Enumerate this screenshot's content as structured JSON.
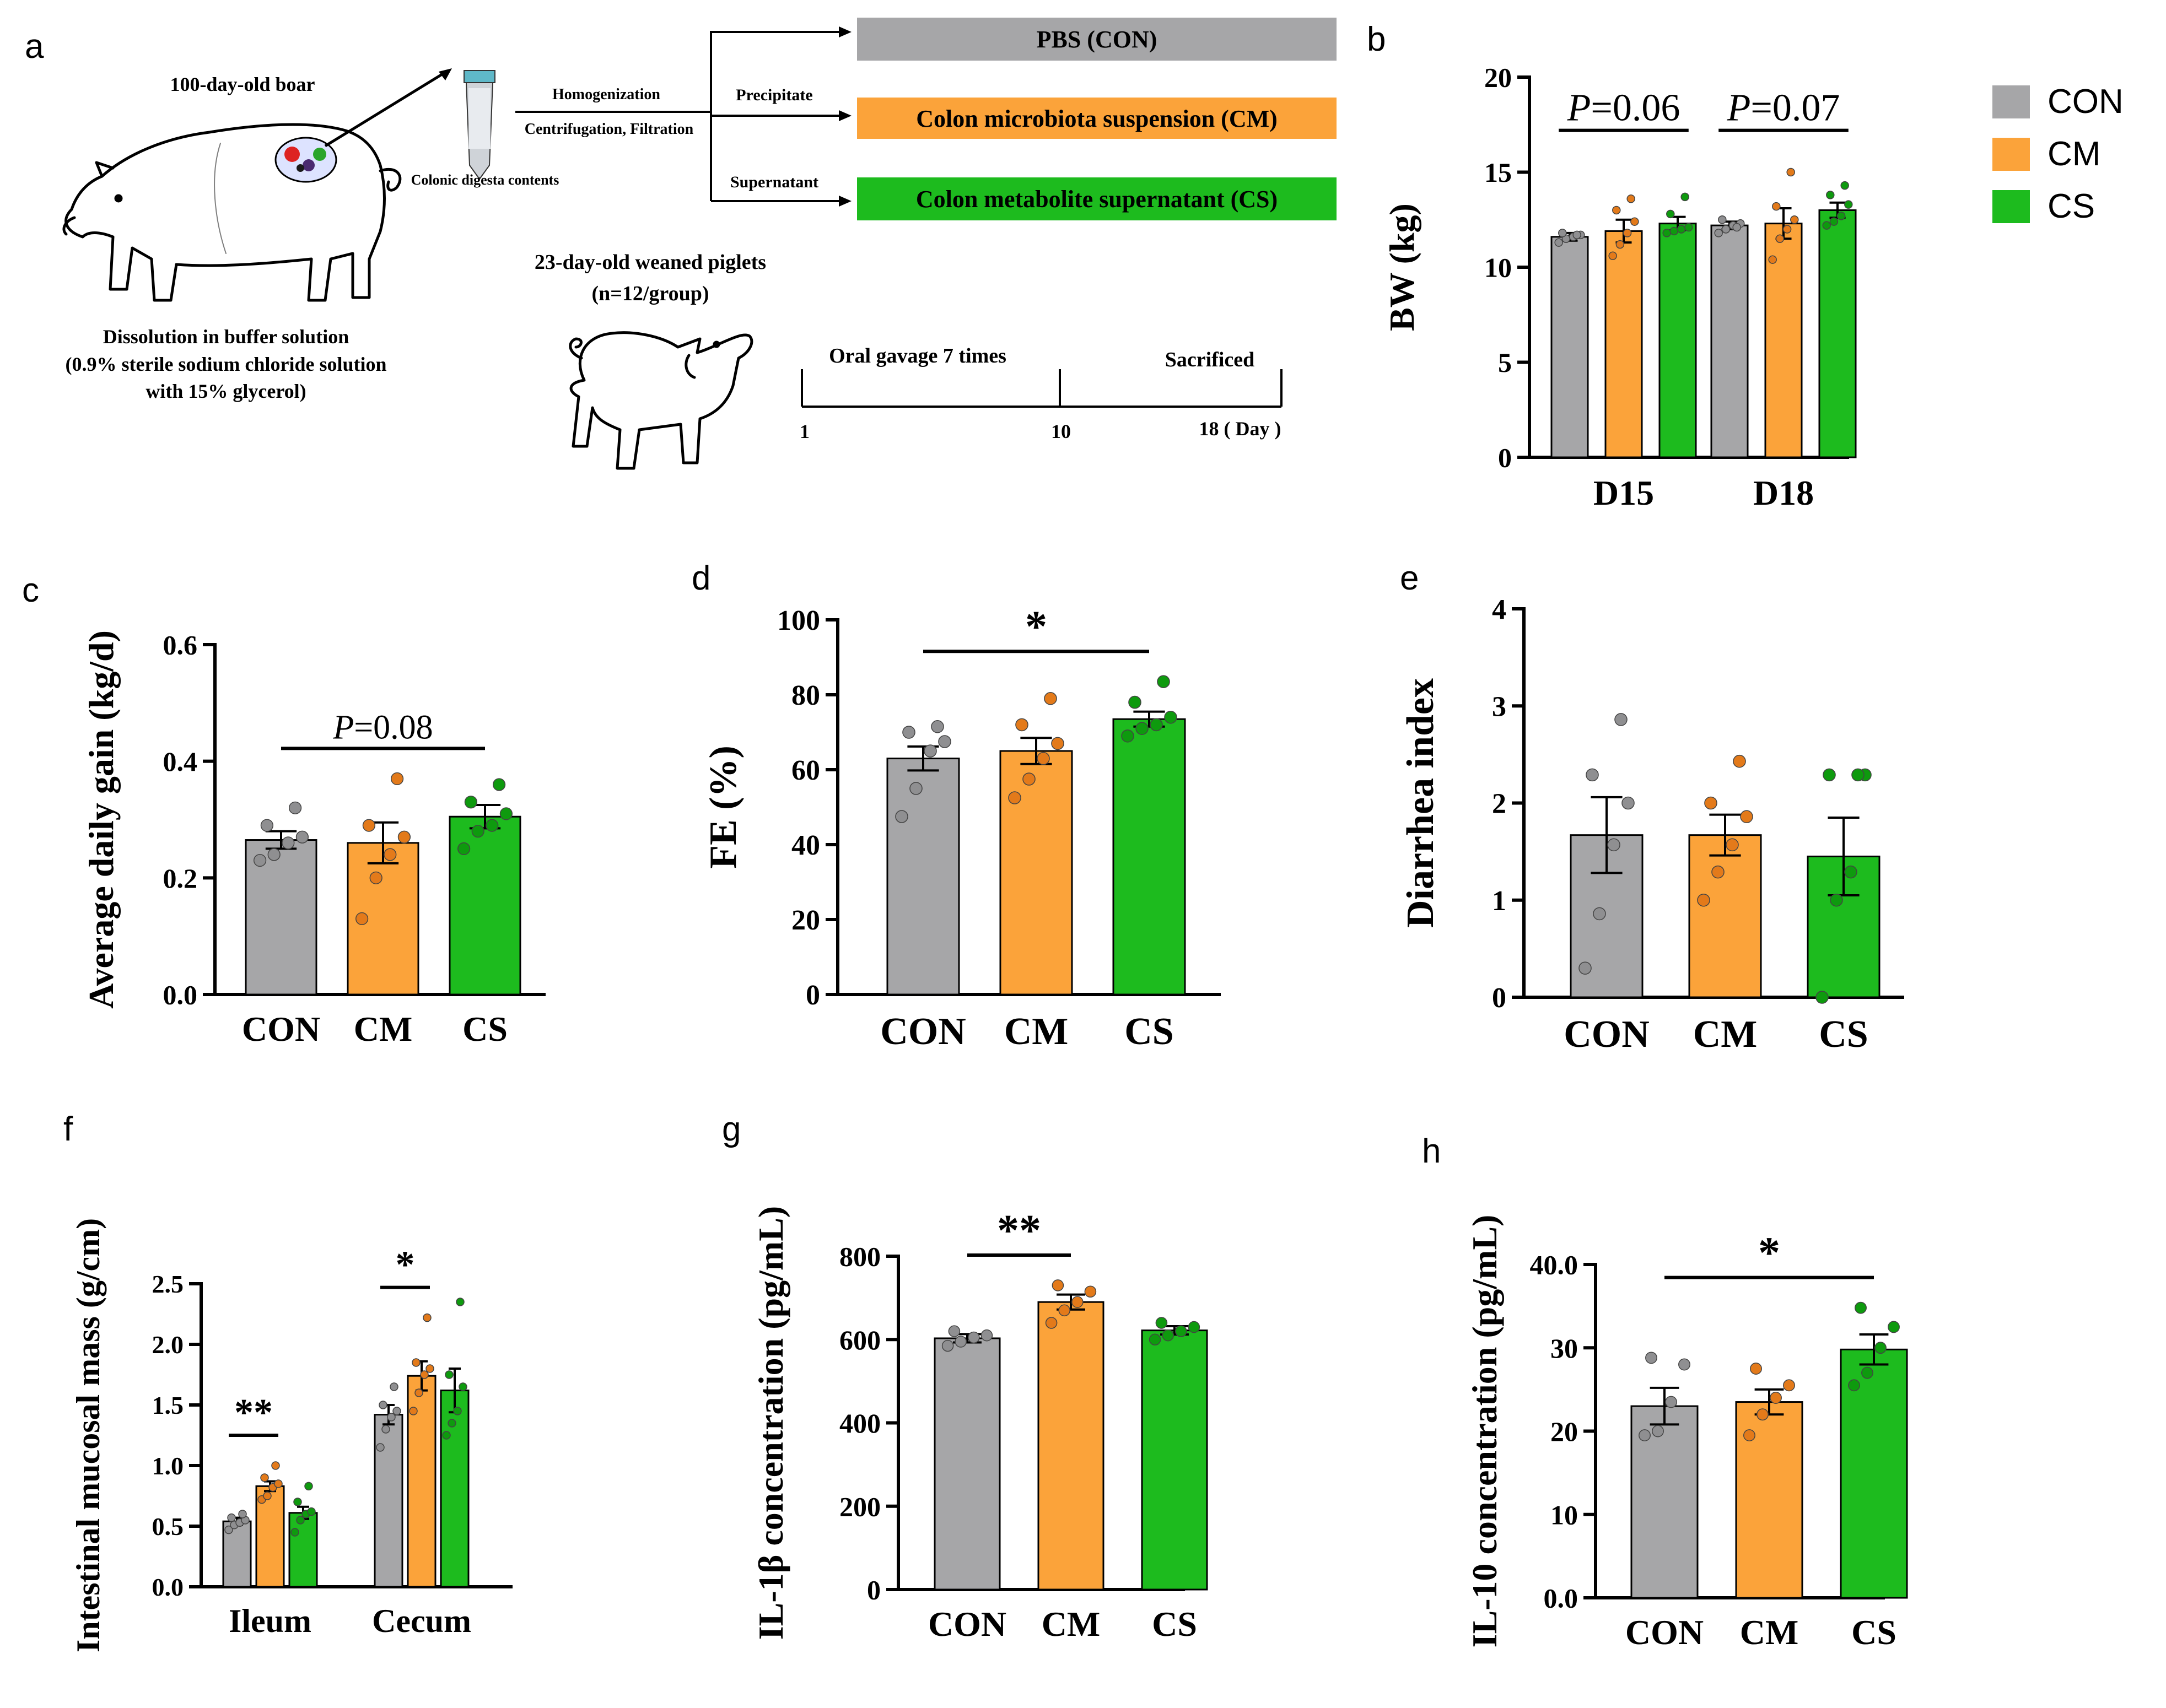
{
  "colors": {
    "CON": "#a6a6a8",
    "CM": "#fba33a",
    "CS": "#1dbb1e",
    "CON_dot": "#8f8f91",
    "CM_dot": "#e37a1a",
    "CS_dot": "#0e9a0e",
    "axis": "#000000"
  },
  "panel_letters": {
    "a": "a",
    "b": "b",
    "c": "c",
    "d": "d",
    "e": "e",
    "f": "f",
    "g": "g",
    "h": "h"
  },
  "schematic": {
    "boar_title": "100-day-old boar",
    "digesta_label": "Colonic digesta contents",
    "step1": "Homogenization",
    "step2": "Centrifugation, Filtration",
    "precipitate": "Precipitate",
    "supernatant": "Supernatant",
    "box_con": "PBS (CON)",
    "box_cm": "Colon microbiota suspension (CM)",
    "box_cs": "Colon metabolite supernatant (CS)",
    "buffer_line1": "Dissolution in buffer solution",
    "buffer_line2": "(0.9% sterile sodium chloride solution",
    "buffer_line3": "with 15% glycerol)",
    "piglet_line1": "23-day-old weaned piglets",
    "piglet_line2": "(n=12/group)",
    "timeline_gavage": "Oral gavage 7 times",
    "timeline_sacrificed": "Sacrificed",
    "tick_1": "1",
    "tick_10": "10",
    "tick_18": "18 ( Day )",
    "box_colors": {
      "con": "#a6a6a8",
      "cm": "#fba33a",
      "cs": "#1dbb1e"
    }
  },
  "chart_data": [
    {
      "panel": "b",
      "type": "bar",
      "ylabel": "BW (kg)",
      "ylim": [
        0,
        20
      ],
      "yticks": [
        0,
        5,
        10,
        15,
        20
      ],
      "categories": [
        "D15",
        "D18"
      ],
      "legend": [
        "CON",
        "CM",
        "CS"
      ],
      "legend_position": "right",
      "series": [
        {
          "name": "CON",
          "values": [
            11.6,
            12.2
          ],
          "sem": [
            0.2,
            0.2
          ],
          "points": [
            [
              11.3,
              11.5,
              11.6,
              11.7,
              11.8,
              11.7
            ],
            [
              11.8,
              12.0,
              12.2,
              12.3,
              12.5,
              12.1
            ]
          ]
        },
        {
          "name": "CM",
          "values": [
            11.9,
            12.3
          ],
          "sem": [
            0.6,
            0.8
          ],
          "points": [
            [
              10.6,
              11.2,
              11.8,
              12.4,
              13.0,
              13.6
            ],
            [
              10.4,
              11.5,
              12.0,
              12.5,
              13.2,
              15.0
            ]
          ]
        },
        {
          "name": "CS",
          "values": [
            12.3,
            13.0
          ],
          "sem": [
            0.35,
            0.4
          ],
          "points": [
            [
              11.8,
              11.9,
              12.0,
              12.1,
              12.8,
              13.7
            ],
            [
              12.2,
              12.4,
              12.7,
              13.3,
              13.8,
              14.3
            ]
          ]
        }
      ],
      "annotations": [
        {
          "text_i": "P",
          "text": "=0.06",
          "group": 0
        },
        {
          "text_i": "P",
          "text": "=0.07",
          "group": 1
        }
      ]
    },
    {
      "panel": "c",
      "type": "bar",
      "ylabel": "Average daily gain (kg/d)",
      "ylim": [
        0,
        0.6
      ],
      "yticks": [
        "0.0",
        "0.2",
        "0.4",
        "0.6"
      ],
      "categories": [
        "CON",
        "CM",
        "CS"
      ],
      "values": [
        0.265,
        0.26,
        0.305
      ],
      "sem": [
        0.015,
        0.035,
        0.02
      ],
      "points": [
        [
          0.23,
          0.24,
          0.26,
          0.27,
          0.29,
          0.32
        ],
        [
          0.13,
          0.2,
          0.24,
          0.27,
          0.29,
          0.37
        ],
        [
          0.25,
          0.28,
          0.29,
          0.31,
          0.33,
          0.36
        ]
      ],
      "annotation": {
        "text_i": "P",
        "text": "=0.08",
        "from": 0,
        "to": 2
      }
    },
    {
      "panel": "d",
      "type": "bar",
      "ylabel": "FE (%)",
      "ylim": [
        0,
        100
      ],
      "yticks": [
        0,
        20,
        40,
        60,
        80,
        100
      ],
      "categories": [
        "CON",
        "CM",
        "CS"
      ],
      "values": [
        63,
        65,
        73.5
      ],
      "sem": [
        3.2,
        3.5,
        2.0
      ],
      "points": [
        [
          47.5,
          55.0,
          65.0,
          67.5,
          70.0,
          71.5
        ],
        [
          52.5,
          57.5,
          63.0,
          67.0,
          72.0,
          79.0
        ],
        [
          69.0,
          71.0,
          72.0,
          74.0,
          78.0,
          83.5
        ]
      ],
      "annotation": {
        "text": "*",
        "from": 0,
        "to": 2
      }
    },
    {
      "panel": "e",
      "type": "bar",
      "ylabel": "Diarrhea index",
      "ylim": [
        0,
        4
      ],
      "yticks": [
        0,
        1,
        2,
        3,
        4
      ],
      "categories": [
        "CON",
        "CM",
        "CS"
      ],
      "values": [
        1.67,
        1.67,
        1.45
      ],
      "sem": [
        0.39,
        0.21,
        0.4
      ],
      "points": [
        [
          0.3,
          0.86,
          1.57,
          2.0,
          2.29,
          2.86
        ],
        [
          1.0,
          1.29,
          1.57,
          1.86,
          2.0,
          2.43
        ],
        [
          0.0,
          1.0,
          1.29,
          2.29,
          2.29,
          2.29
        ]
      ]
    },
    {
      "panel": "f",
      "type": "bar",
      "ylabel": "Intestinal mucosal mass (g/cm)",
      "ylim": [
        0,
        2.5
      ],
      "yticks": [
        "0.0",
        "0.5",
        "1.0",
        "1.5",
        "2.0",
        "2.5"
      ],
      "categories": [
        "Ileum",
        "Cecum"
      ],
      "series": [
        {
          "name": "CON",
          "values": [
            0.54,
            1.42
          ],
          "sem": [
            0.03,
            0.08
          ],
          "points": [
            [
              0.47,
              0.51,
              0.53,
              0.55,
              0.57,
              0.6
            ],
            [
              1.15,
              1.3,
              1.4,
              1.45,
              1.5,
              1.65
            ]
          ]
        },
        {
          "name": "CM",
          "values": [
            0.83,
            1.74
          ],
          "sem": [
            0.04,
            0.12
          ],
          "points": [
            [
              0.72,
              0.75,
              0.82,
              0.85,
              0.9,
              1.0
            ],
            [
              1.45,
              1.6,
              1.75,
              1.8,
              1.85,
              2.22
            ]
          ]
        },
        {
          "name": "CS",
          "values": [
            0.61,
            1.62
          ],
          "sem": [
            0.05,
            0.18
          ],
          "points": [
            [
              0.45,
              0.55,
              0.6,
              0.62,
              0.7,
              0.83
            ],
            [
              1.25,
              1.35,
              1.45,
              1.65,
              1.75,
              2.35
            ]
          ]
        }
      ],
      "annotations": [
        {
          "text": "**",
          "group": 0,
          "from": 0,
          "to": 1
        },
        {
          "text": "*",
          "group": 1,
          "from": 0,
          "to": 1
        }
      ]
    },
    {
      "panel": "g",
      "type": "bar",
      "ylabel": "IL-1β concentration (pg/mL)",
      "ylim": [
        0,
        800
      ],
      "yticks": [
        0,
        200,
        400,
        600,
        800
      ],
      "categories": [
        "CON",
        "CM",
        "CS"
      ],
      "values": [
        603,
        690,
        622
      ],
      "sem": [
        10,
        18,
        10
      ],
      "points": [
        [
          585,
          595,
          605,
          610,
          620
        ],
        [
          640,
          670,
          690,
          715,
          730
        ],
        [
          600,
          610,
          620,
          630,
          640
        ]
      ],
      "annotation": {
        "text": "**",
        "from": 0,
        "to": 1
      }
    },
    {
      "panel": "h",
      "type": "bar",
      "ylabel": "IL-10 concentration (pg/mL)",
      "ylim": [
        0,
        40
      ],
      "yticks": [
        "0.0",
        "10",
        "20",
        "30",
        "40.0"
      ],
      "categories": [
        "CON",
        "CM",
        "CS"
      ],
      "values": [
        23.0,
        23.5,
        29.8
      ],
      "sem": [
        2.2,
        1.5,
        1.8
      ],
      "points": [
        [
          19.5,
          20.0,
          23.5,
          28.0,
          28.8
        ],
        [
          19.5,
          22.0,
          24.0,
          25.5,
          27.5
        ],
        [
          25.5,
          27.0,
          30.0,
          32.5,
          34.8
        ]
      ],
      "annotation": {
        "text": "*",
        "from": 0,
        "to": 2
      }
    }
  ]
}
